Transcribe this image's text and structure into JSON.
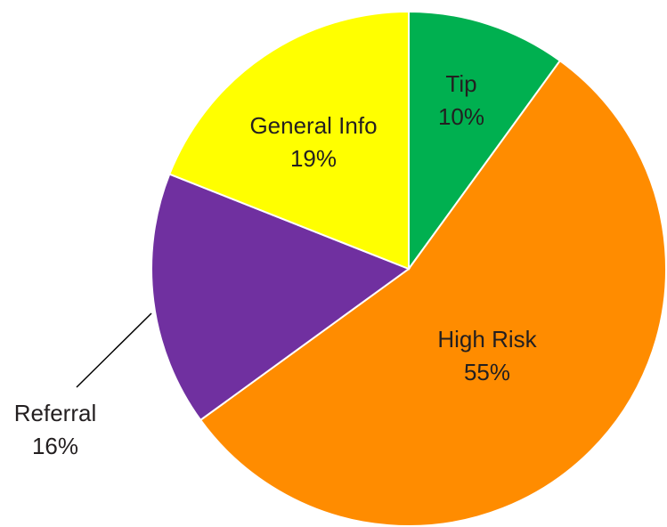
{
  "chart_data": {
    "type": "pie",
    "title": "",
    "start_angle_deg": 0,
    "direction": "clockwise",
    "slices": [
      {
        "name": "Tip",
        "value": 10,
        "label": "10%",
        "color": "#00b050"
      },
      {
        "name": "High Risk",
        "value": 55,
        "label": "55%",
        "color": "#ff8c00"
      },
      {
        "name": "Referral",
        "value": 16,
        "label": "16%",
        "color": "#7030a0",
        "label_outside": true
      },
      {
        "name": "General Info",
        "value": 19,
        "label": "19%",
        "color": "#ffff00"
      }
    ]
  }
}
